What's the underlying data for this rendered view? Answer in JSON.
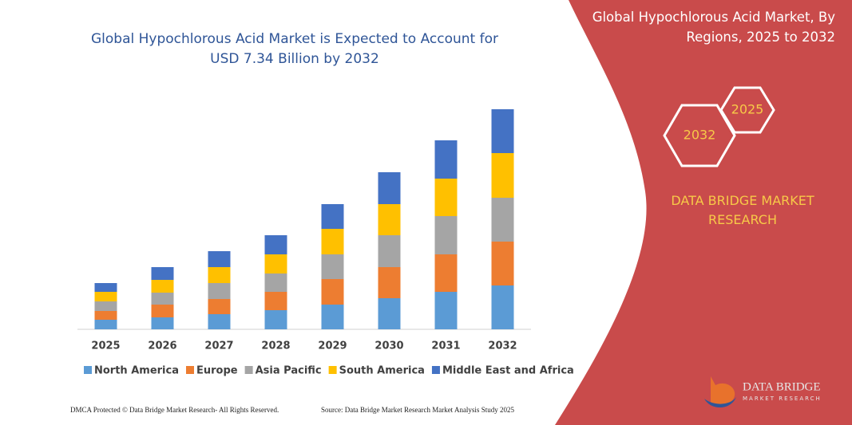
{
  "chart_data": {
    "type": "stacked_bar",
    "title": "Global Hypochlorous Acid Market is Expected to Account for USD 7.34 Billion by 2032",
    "categories": [
      "2025",
      "2026",
      "2027",
      "2028",
      "2029",
      "2030",
      "2031",
      "2032"
    ],
    "series": [
      {
        "name": "North America",
        "color": "#5b9bd5",
        "values": [
          12,
          15,
          19,
          24,
          31,
          39,
          47,
          55
        ]
      },
      {
        "name": "Europe",
        "color": "#ed7d31",
        "values": [
          11,
          16,
          19,
          23,
          32,
          39,
          47,
          55
        ]
      },
      {
        "name": "Asia Pacific",
        "color": "#a5a5a5",
        "values": [
          12,
          15,
          20,
          23,
          31,
          40,
          48,
          55
        ]
      },
      {
        "name": "South America",
        "color": "#ffc000",
        "values": [
          12,
          16,
          20,
          24,
          32,
          39,
          47,
          56
        ]
      },
      {
        "name": "Middle East and Africa",
        "color": "#4472c4",
        "values": [
          11,
          16,
          20,
          24,
          31,
          40,
          48,
          55
        ]
      }
    ],
    "ylim": [
      0,
      290
    ]
  },
  "panel": {
    "title": "Global Hypochlorous Acid Market, By Regions, 2025 to 2032",
    "hex_small": "2025",
    "hex_large": "2032",
    "brand": "DATA BRIDGE MARKET RESEARCH"
  },
  "logo": {
    "name": "DATA BRIDGE",
    "tagline": "MARKET RESEARCH"
  },
  "footer": {
    "left": "DMCA Protected © Data Bridge Market Research-  All Rights Reserved.",
    "right": "Source: Data Bridge Market Research  Market Analysis Study 2025"
  }
}
